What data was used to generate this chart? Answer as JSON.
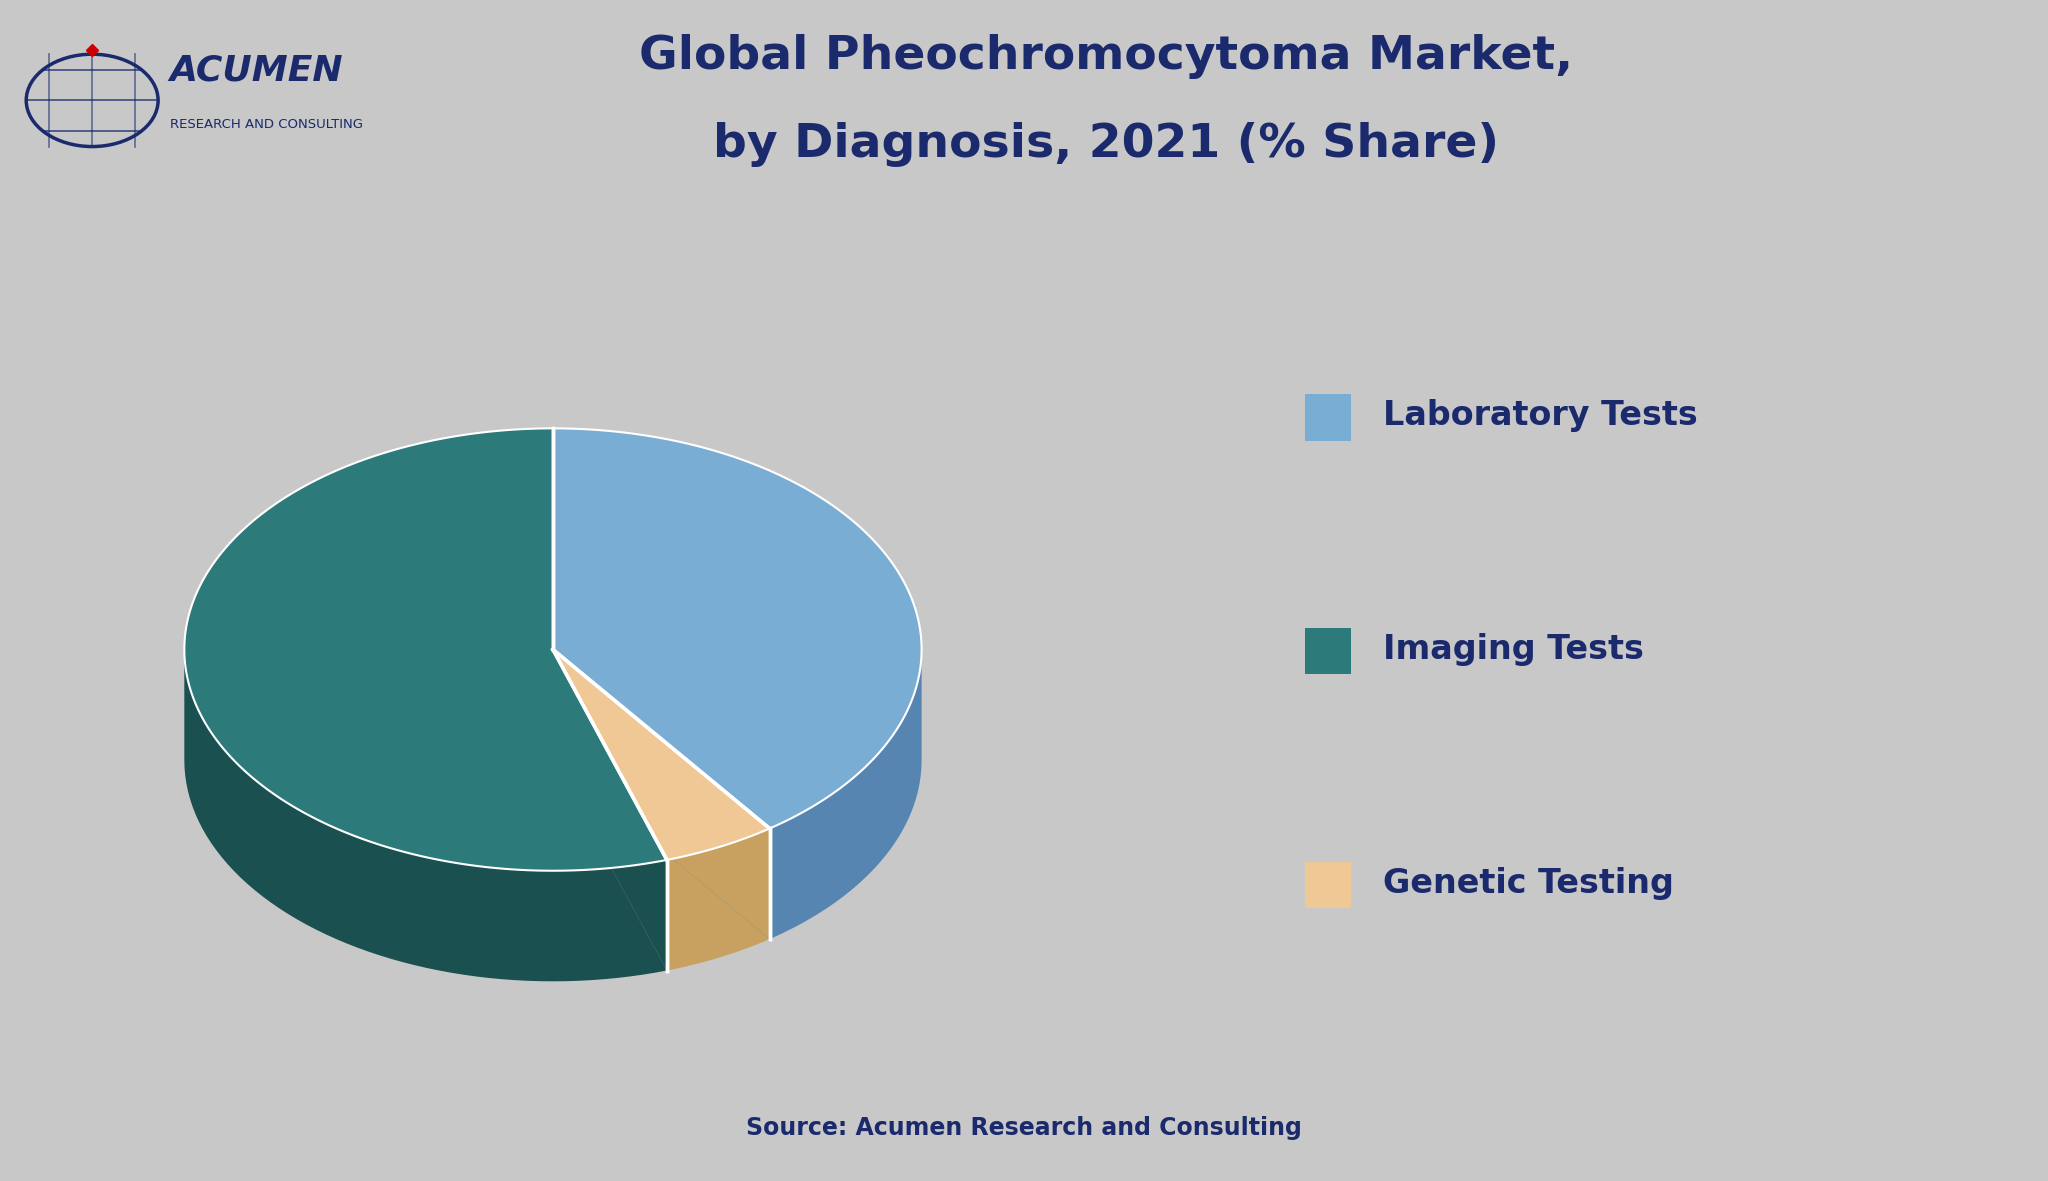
{
  "title_line1": "Global Pheochromocytoma Market,",
  "title_line2": "by Diagnosis, 2021 (% Share)",
  "slices": [
    {
      "label": "Laboratory Tests",
      "value": 40,
      "color": "#7aadd4",
      "shadow_color": "#5585b0"
    },
    {
      "label": "Imaging Tests",
      "value": 55,
      "color": "#2d7a7a",
      "shadow_color": "#1a5050"
    },
    {
      "label": "Genetic Testing",
      "value": 5,
      "color": "#f0c896",
      "shadow_color": "#c8a060"
    }
  ],
  "background_color": "#c8c8c8",
  "title_color": "#1a2a6c",
  "legend_color": "#1a2a6c",
  "source_text": "Source: Acumen Research and Consulting",
  "source_color": "#1a2a6c",
  "separator_color": "#1a2a6c",
  "acumen_blue": "#1a2a6c",
  "acumen_red": "#cc0000",
  "header_bg": "#c8c8c8"
}
